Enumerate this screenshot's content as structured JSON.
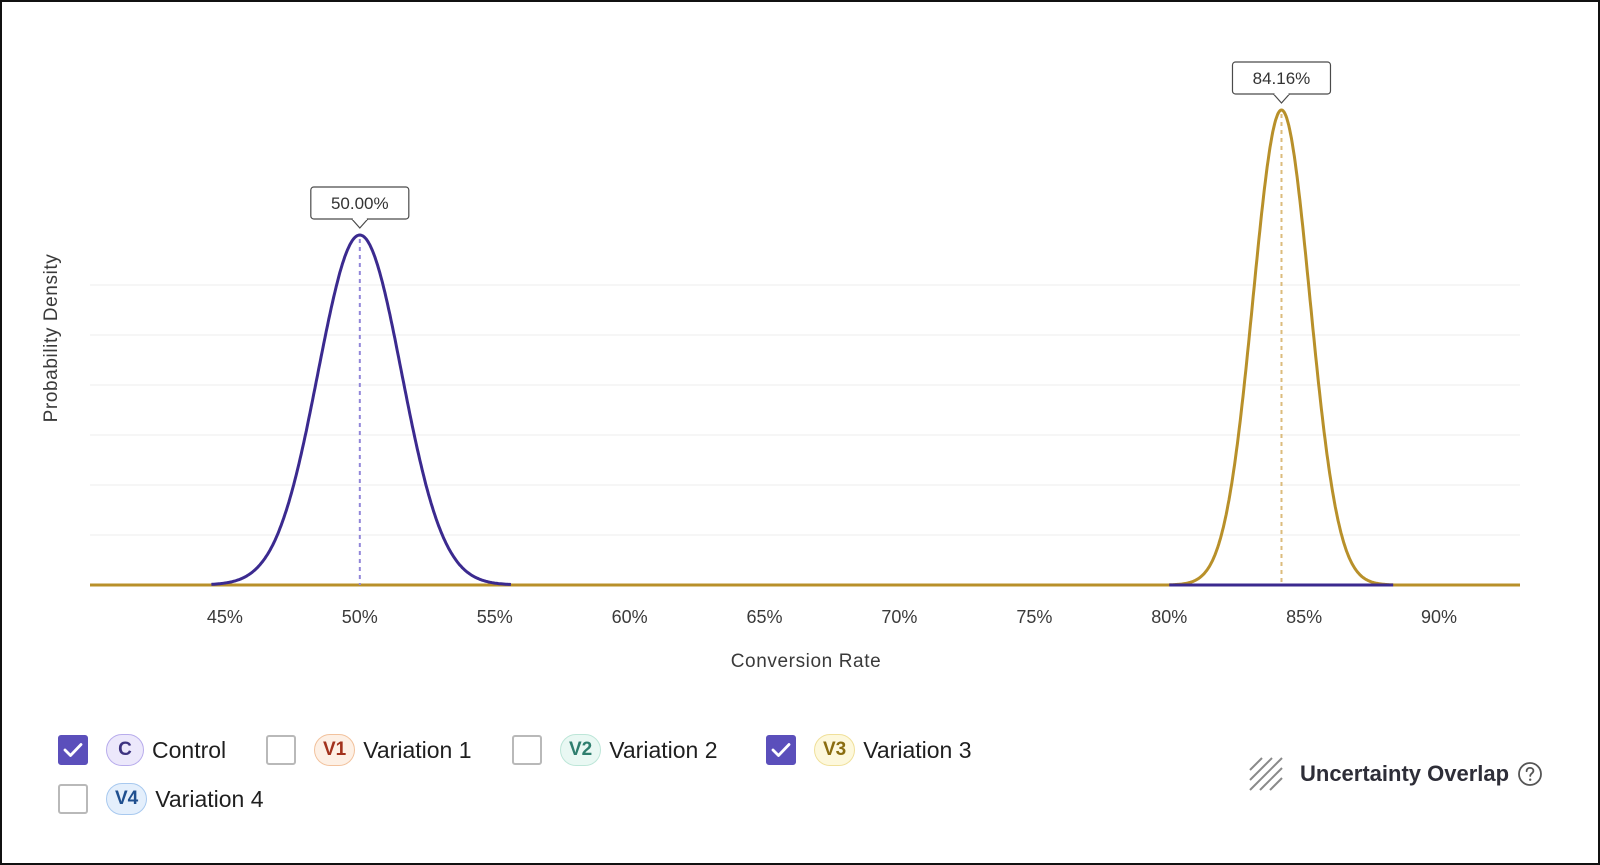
{
  "chart_data": {
    "type": "line",
    "xlabel": "Conversion Rate",
    "ylabel": "Probability Density",
    "xlim": [
      40,
      93
    ],
    "ylim": [
      0,
      1
    ],
    "x_ticks": [
      "45%",
      "50%",
      "55%",
      "60%",
      "65%",
      "70%",
      "75%",
      "80%",
      "85%",
      "90%"
    ],
    "x_tick_values": [
      45,
      50,
      55,
      60,
      65,
      70,
      75,
      80,
      85,
      90
    ],
    "grid": true,
    "series": [
      {
        "name": "Control",
        "key": "C",
        "color": "#3b2a8f",
        "mean": 50.0,
        "sd": 1.55,
        "peak": 0.7,
        "range": [
          44.5,
          55.6
        ],
        "peak_label": "50.00%"
      },
      {
        "name": "Variation 3",
        "key": "V3",
        "color": "#b8902a",
        "mean": 84.16,
        "sd": 1.05,
        "peak": 0.95,
        "range": [
          80,
          88.3
        ],
        "peak_label": "84.16%"
      }
    ]
  },
  "legend": {
    "items": [
      {
        "badge": "C",
        "label": "Control",
        "checked": true,
        "badge_bg": "#ece8fb",
        "badge_border": "#b8acec",
        "badge_color": "#3d3380"
      },
      {
        "badge": "V1",
        "label": "Variation 1",
        "checked": false,
        "badge_bg": "#fdf0e5",
        "badge_border": "#f2c29d",
        "badge_color": "#a2321d"
      },
      {
        "badge": "V2",
        "label": "Variation 2",
        "checked": false,
        "badge_bg": "#e9f8f3",
        "badge_border": "#bde6d8",
        "badge_color": "#2f7e6e"
      },
      {
        "badge": "V3",
        "label": "Variation 3",
        "checked": true,
        "badge_bg": "#fdf8dc",
        "badge_border": "#f0e09a",
        "badge_color": "#8a6d10"
      },
      {
        "badge": "V4",
        "label": "Variation 4",
        "checked": false,
        "badge_bg": "#e4effc",
        "badge_border": "#a8c9ef",
        "badge_color": "#1f4f8f"
      }
    ]
  },
  "overlap": {
    "label": "Uncertainty Overlap",
    "icon": "hatch-icon",
    "help_icon": "help-circle-icon"
  }
}
